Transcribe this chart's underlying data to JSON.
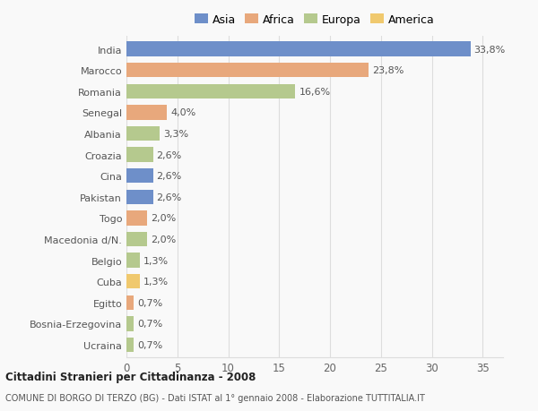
{
  "countries": [
    "India",
    "Marocco",
    "Romania",
    "Senegal",
    "Albania",
    "Croazia",
    "Cina",
    "Pakistan",
    "Togo",
    "Macedonia d/N.",
    "Belgio",
    "Cuba",
    "Egitto",
    "Bosnia-Erzegovina",
    "Ucraina"
  ],
  "values": [
    33.8,
    23.8,
    16.6,
    4.0,
    3.3,
    2.6,
    2.6,
    2.6,
    2.0,
    2.0,
    1.3,
    1.3,
    0.7,
    0.7,
    0.7
  ],
  "continents": [
    "Asia",
    "Africa",
    "Europa",
    "Africa",
    "Europa",
    "Europa",
    "Asia",
    "Asia",
    "Africa",
    "Europa",
    "Europa",
    "America",
    "Africa",
    "Europa",
    "Europa"
  ],
  "continent_colors": {
    "Asia": "#6e8fc9",
    "Africa": "#e8a87c",
    "Europa": "#b5c98e",
    "America": "#f0c96e"
  },
  "legend_order": [
    "Asia",
    "Africa",
    "Europa",
    "America"
  ],
  "title": "Cittadini Stranieri per Cittadinanza - 2008",
  "subtitle": "COMUNE DI BORGO DI TERZO (BG) - Dati ISTAT al 1° gennaio 2008 - Elaborazione TUTTITALIA.IT",
  "xlim": [
    0,
    37
  ],
  "xticks": [
    0,
    5,
    10,
    15,
    20,
    25,
    30,
    35
  ],
  "bg_color": "#f9f9f9",
  "bar_height": 0.7,
  "grid_color": "#dddddd",
  "label_fontsize": 8.0,
  "ytick_fontsize": 8.0,
  "xtick_fontsize": 8.5
}
